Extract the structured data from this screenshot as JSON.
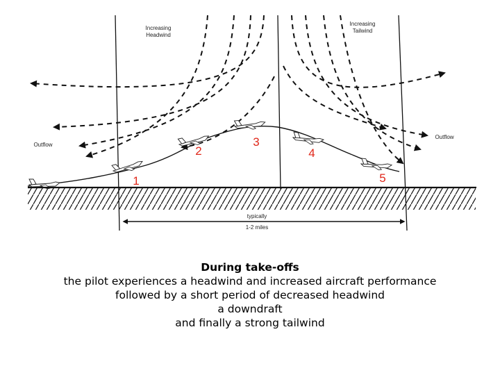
{
  "diagram": {
    "labels": {
      "increasing_headwind": [
        "Increasing",
        "Headwind"
      ],
      "increasing_tailwind": [
        "Increasing",
        "Tailwind"
      ],
      "outflow_left": "Outflow",
      "outflow_right": "Outflow",
      "distance": [
        "typically",
        "1-2 miles"
      ]
    },
    "positions": [
      "1",
      "2",
      "3",
      "4",
      "5"
    ],
    "colors": {
      "position_numbers": "#e0271a",
      "lines": "#111111"
    }
  },
  "caption": {
    "title": "During take-offs",
    "lines": [
      "the pilot experiences a headwind and increased aircraft performance",
      "followed by a short period of decreased headwind",
      "a downdraft",
      "and finally a strong tailwind"
    ]
  }
}
